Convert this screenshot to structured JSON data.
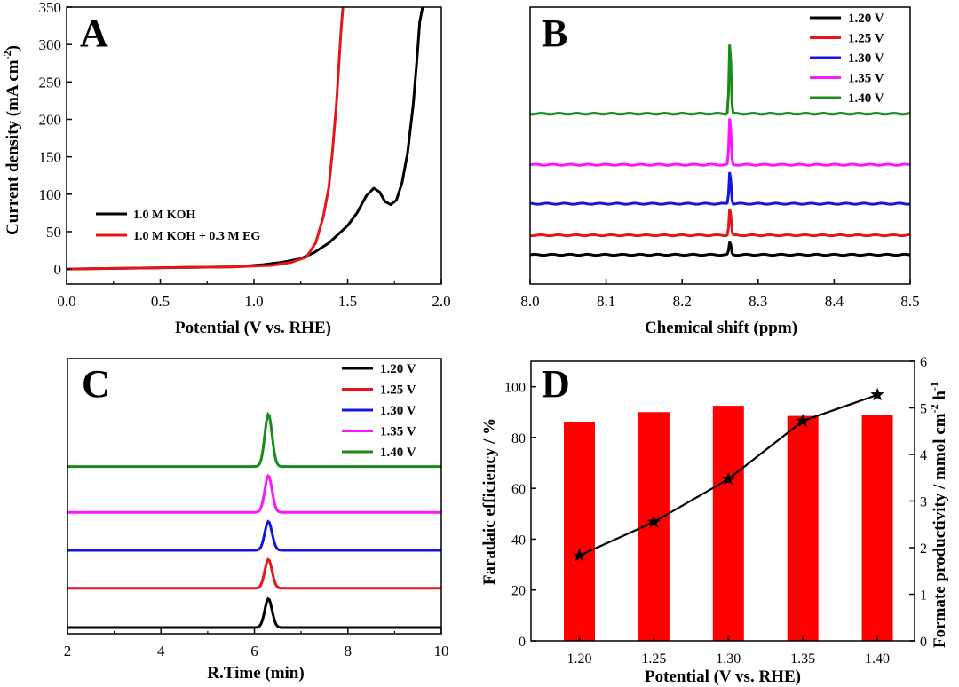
{
  "chart_data": [
    {
      "panel": "A",
      "type": "line",
      "letter": "A",
      "xlabel": "Potential (V vs. RHE)",
      "ylabel": "Current density (mA cm",
      "ylabel_sup": "-2",
      "ylabel_end": ")",
      "xlim": [
        0.0,
        2.0
      ],
      "ylim": [
        -20,
        350
      ],
      "xticks": [
        0.0,
        0.5,
        1.0,
        1.5,
        2.0
      ],
      "xtick_labels": [
        "0.0",
        "0.5",
        "1.0",
        "1.5",
        "2.0"
      ],
      "yticks": [
        0,
        50,
        100,
        150,
        200,
        250,
        300,
        350
      ],
      "ytick_labels": [
        "0",
        "50",
        "100",
        "150",
        "200",
        "250",
        "300",
        "350"
      ],
      "legend": [
        "1.0 M KOH",
        "1.0 M KOH + 0.3 M EG"
      ],
      "series": [
        {
          "name": "1.0 M KOH",
          "color": "#000000",
          "x": [
            0.0,
            0.3,
            0.6,
            0.9,
            1.05,
            1.15,
            1.25,
            1.32,
            1.4,
            1.5,
            1.55,
            1.6,
            1.64,
            1.67,
            1.7,
            1.73,
            1.76,
            1.79,
            1.82,
            1.85,
            1.87,
            1.885,
            1.9
          ],
          "y": [
            0,
            1,
            2,
            3,
            6,
            9,
            14,
            22,
            35,
            58,
            75,
            98,
            108,
            103,
            90,
            86,
            92,
            115,
            155,
            220,
            280,
            330,
            350
          ]
        },
        {
          "name": "1.0 M KOH + 0.3 M EG",
          "color": "#e8141b",
          "x": [
            0.0,
            0.3,
            0.6,
            0.9,
            1.1,
            1.2,
            1.28,
            1.33,
            1.37,
            1.4,
            1.42,
            1.44,
            1.455,
            1.465,
            1.475
          ],
          "y": [
            0,
            1,
            2,
            3,
            5,
            9,
            16,
            35,
            70,
            110,
            160,
            220,
            280,
            320,
            350
          ]
        }
      ]
    },
    {
      "panel": "B",
      "type": "line",
      "letter": "B",
      "xlabel": "Chemical shift (ppm)",
      "xlim": [
        8.0,
        8.5
      ],
      "xticks": [
        8.0,
        8.1,
        8.2,
        8.3,
        8.4,
        8.5
      ],
      "xtick_labels": [
        "8.0",
        "8.1",
        "8.2",
        "8.3",
        "8.4",
        "8.5"
      ],
      "peak_position": 8.263,
      "legend": [
        "1.20 V",
        "1.25 V",
        "1.30 V",
        "1.35 V",
        "1.40 V"
      ],
      "series": [
        {
          "name": "1.20 V",
          "color": "#000000",
          "baseline": 0.0,
          "peak": 0.45
        },
        {
          "name": "1.25 V",
          "color": "#e8141b",
          "baseline": 0.65,
          "peak": 0.95
        },
        {
          "name": "1.30 V",
          "color": "#1414e6",
          "baseline": 1.7,
          "peak": 1.15
        },
        {
          "name": "1.35 V",
          "color": "#ff14ff",
          "baseline": 3.0,
          "peak": 1.65
        },
        {
          "name": "1.40 V",
          "color": "#1a8a1a",
          "baseline": 4.7,
          "peak": 2.5
        }
      ]
    },
    {
      "panel": "C",
      "type": "line",
      "letter": "C",
      "xlabel": "R.Time (min)",
      "xlim": [
        2,
        10
      ],
      "xticks": [
        2,
        4,
        6,
        8,
        10
      ],
      "xtick_labels": [
        "2",
        "4",
        "6",
        "8",
        "10"
      ],
      "peak_position": 6.3,
      "legend": [
        "1.20 V",
        "1.25 V",
        "1.30 V",
        "1.35 V",
        "1.40 V"
      ],
      "series": [
        {
          "name": "1.20 V",
          "color": "#000000",
          "baseline": 0.0,
          "peak": 1.1
        },
        {
          "name": "1.25 V",
          "color": "#e8141b",
          "baseline": 1.5,
          "peak": 1.1
        },
        {
          "name": "1.30 V",
          "color": "#1414e6",
          "baseline": 2.95,
          "peak": 1.1
        },
        {
          "name": "1.35 V",
          "color": "#ff14ff",
          "baseline": 4.4,
          "peak": 1.4
        },
        {
          "name": "1.40 V",
          "color": "#1a8a1a",
          "baseline": 6.15,
          "peak": 2.0
        }
      ]
    },
    {
      "panel": "D",
      "type": "bar",
      "letter": "D",
      "xlabel": "Potential (V vs. RHE)",
      "ylabel": "Faradaic efficiency / %",
      "ylabel_right": "Formate productivity / mmol cm",
      "ylabel_right_sup1": "-2",
      "ylabel_right_mid": " h",
      "ylabel_right_sup2": "-1",
      "categories": [
        "1.20",
        "1.25",
        "1.30",
        "1.35",
        "1.40"
      ],
      "ylim": [
        0,
        110
      ],
      "yticks": [
        0,
        20,
        40,
        60,
        80,
        100
      ],
      "ytick_labels": [
        "0",
        "20",
        "40",
        "60",
        "80",
        "100"
      ],
      "ylim_right": [
        0,
        6
      ],
      "yticks_right": [
        0,
        1,
        2,
        3,
        4,
        5,
        6
      ],
      "ytick_labels_right": [
        "0",
        "1",
        "2",
        "3",
        "4",
        "5",
        "6"
      ],
      "bar_color": "#ff0000",
      "series": [
        {
          "name": "Faradaic efficiency",
          "axis": "left",
          "values": [
            86,
            90,
            92.5,
            88.5,
            89
          ]
        },
        {
          "name": "Formate productivity",
          "axis": "right",
          "values": [
            1.83,
            2.55,
            3.47,
            4.72,
            5.28
          ]
        }
      ]
    }
  ]
}
